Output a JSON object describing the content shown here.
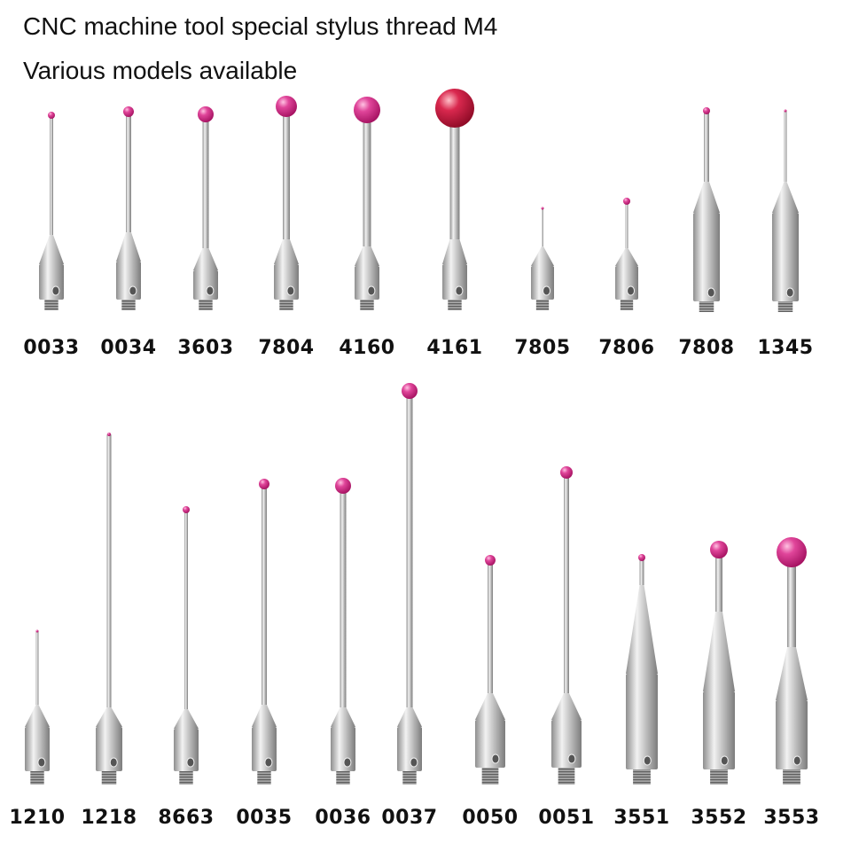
{
  "header": {
    "title": "CNC machine tool special stylus thread M4",
    "subtitle": "Various models available"
  },
  "colors": {
    "ruby": "#e0459a",
    "ruby_dark": "#b0106a",
    "steel": "#c9c9c9",
    "steel_dark": "#8a8a8a"
  },
  "rows": [
    {
      "styli": [
        {
          "model": "0033"
        },
        {
          "model": "0034"
        },
        {
          "model": "3603"
        },
        {
          "model": "7804"
        },
        {
          "model": "4160"
        },
        {
          "model": "4161"
        },
        {
          "model": "7805"
        },
        {
          "model": "7806"
        },
        {
          "model": "7808"
        },
        {
          "model": "1345"
        }
      ]
    },
    {
      "styli": [
        {
          "model": "1210"
        },
        {
          "model": "1218"
        },
        {
          "model": "8663"
        },
        {
          "model": "0035"
        },
        {
          "model": "0036"
        },
        {
          "model": "0037"
        },
        {
          "model": "0050"
        },
        {
          "model": "0051"
        },
        {
          "model": "3551"
        },
        {
          "model": "3552"
        },
        {
          "model": "3553"
        }
      ]
    }
  ]
}
